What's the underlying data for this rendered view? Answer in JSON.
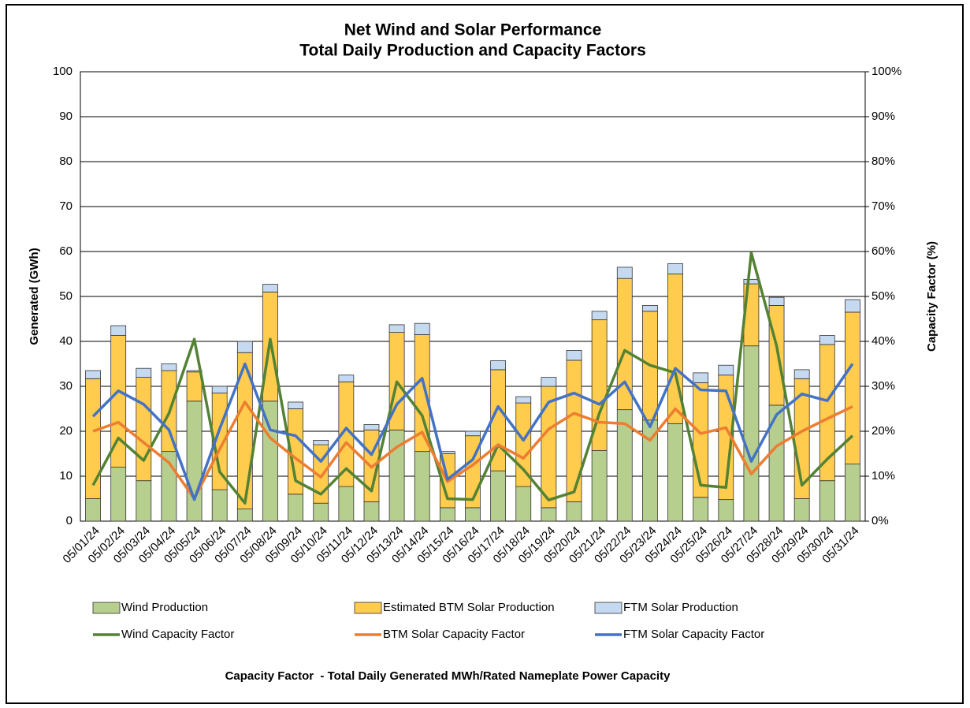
{
  "chart_data": {
    "type": "combo",
    "title": "Net Wind and Solar Performance",
    "subtitle": "Total Daily Production and Capacity Factors",
    "y_label": "Generated (GWh)",
    "y2_label": "Capacity Factor (%)",
    "footnote": "Capacity Factor  - Total Daily Generated MWh/Rated Nameplate Power Capacity",
    "categories": [
      "05/01/24",
      "05/02/24",
      "05/03/24",
      "05/04/24",
      "05/05/24",
      "05/06/24",
      "05/07/24",
      "05/08/24",
      "05/09/24",
      "05/10/24",
      "05/11/24",
      "05/12/24",
      "05/13/24",
      "05/14/24",
      "05/15/24",
      "05/16/24",
      "05/17/24",
      "05/18/24",
      "05/19/24",
      "05/20/24",
      "05/21/24",
      "05/22/24",
      "05/23/24",
      "05/24/24",
      "05/25/24",
      "05/26/24",
      "05/27/24",
      "05/28/24",
      "05/29/24",
      "05/30/24",
      "05/31/24"
    ],
    "ylim": [
      0,
      100
    ],
    "yticks": [
      0,
      10,
      20,
      30,
      40,
      50,
      60,
      70,
      80,
      90,
      100
    ],
    "y2lim": [
      0,
      100
    ],
    "y2ticks": [
      {
        "value": 0,
        "label": "0%"
      },
      {
        "value": 10,
        "label": "10%"
      },
      {
        "value": 20,
        "label": "20%"
      },
      {
        "value": 30,
        "label": "30%"
      },
      {
        "value": 40,
        "label": "40%"
      },
      {
        "value": 50,
        "label": "50%"
      },
      {
        "value": 60,
        "label": "60%"
      },
      {
        "value": 70,
        "label": "70%"
      },
      {
        "value": 80,
        "label": "80%"
      },
      {
        "value": 90,
        "label": "90%"
      },
      {
        "value": 100,
        "label": "100%"
      }
    ],
    "grid": true,
    "series": [
      {
        "name": "Wind Production",
        "type": "bar",
        "stacked": true,
        "color": "#b6cf8f",
        "values": [
          5,
          12,
          9,
          15.5,
          26.7,
          7,
          2.7,
          26.7,
          6,
          4,
          7.7,
          4.3,
          20.3,
          15.5,
          3,
          3,
          11.2,
          7.7,
          3,
          4.3,
          15.7,
          24.8,
          22.5,
          21.7,
          5.3,
          4.8,
          39,
          25.8,
          5,
          9,
          12.7
        ]
      },
      {
        "name": "Estimated BTM Solar Production",
        "type": "bar",
        "stacked": true,
        "color": "#ffcc4d",
        "values": [
          26.7,
          29.3,
          23,
          18,
          6.5,
          21.5,
          34.8,
          24.3,
          19,
          13,
          23.3,
          16,
          21.7,
          26,
          12,
          16,
          22.5,
          18.6,
          27,
          31.5,
          29.1,
          29.2,
          24.2,
          33.3,
          25.5,
          27.7,
          13.8,
          22.2,
          26.7,
          30.3,
          33.8
        ]
      },
      {
        "name": "FTM Solar Production",
        "type": "bar",
        "stacked": true,
        "color": "#c5d9f1",
        "values": [
          1.8,
          2.2,
          2,
          1.5,
          0.3,
          1.5,
          2.5,
          1.7,
          1.5,
          1,
          1.5,
          1.2,
          1.7,
          2.5,
          0.5,
          1,
          2,
          1.4,
          2,
          2.2,
          1.9,
          2.5,
          1.3,
          2.3,
          2.2,
          2.2,
          1,
          1.8,
          2,
          2,
          2.8
        ]
      },
      {
        "name": "Wind Capacity Factor",
        "type": "line",
        "axis": "y2",
        "color": "#548235",
        "values": [
          8,
          18.5,
          13.5,
          24,
          40.5,
          11,
          4,
          40.5,
          9,
          6,
          11.7,
          6.7,
          31,
          23.5,
          5,
          4.8,
          17,
          11.5,
          4.7,
          6.5,
          24,
          38,
          34.7,
          33,
          8,
          7.5,
          59.7,
          39,
          8,
          13.8,
          19
        ]
      },
      {
        "name": "BTM Solar Capacity Factor",
        "type": "line",
        "axis": "y2",
        "color": "#ed7d31",
        "values": [
          20,
          22,
          17.5,
          13,
          5,
          16,
          26.5,
          18.5,
          14,
          9.8,
          17.5,
          12,
          16.5,
          19.8,
          8.8,
          12.5,
          17,
          14,
          20.5,
          24,
          22,
          21.7,
          18,
          25,
          19.5,
          20.8,
          10.5,
          16.7,
          20,
          22.8,
          25.5
        ]
      },
      {
        "name": "FTM Solar Capacity Factor",
        "type": "line",
        "axis": "y2",
        "color": "#4472c4",
        "values": [
          23.3,
          29,
          26,
          20.3,
          4.8,
          20.5,
          35,
          20.3,
          19,
          13.3,
          20.7,
          14.8,
          26,
          31.8,
          9.3,
          13.7,
          25.5,
          18,
          26.5,
          28.5,
          26,
          31,
          21,
          34,
          29.2,
          29,
          13.3,
          23.7,
          28.3,
          26.8,
          35
        ]
      }
    ]
  }
}
